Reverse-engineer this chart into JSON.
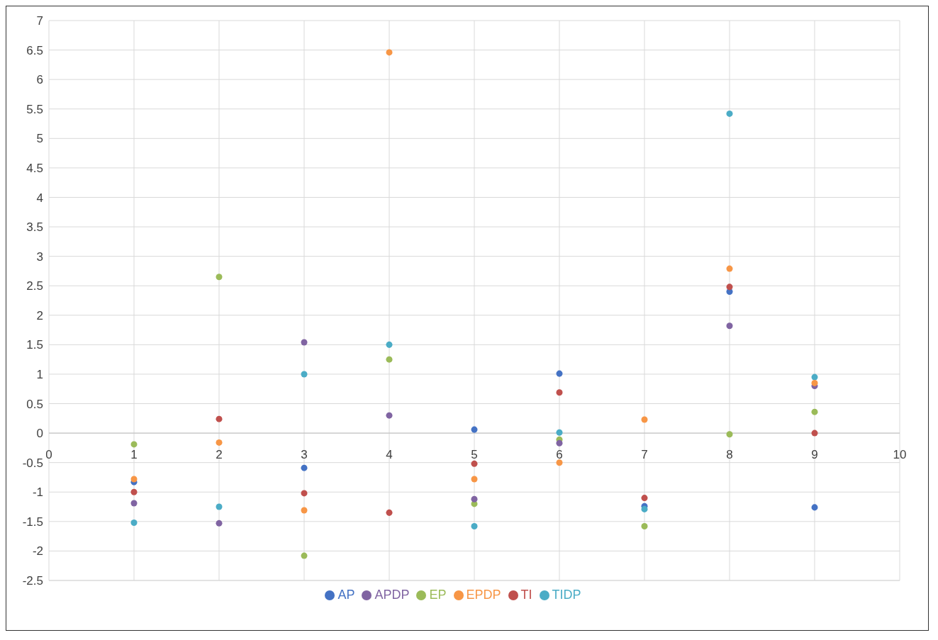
{
  "chart_data": {
    "type": "scatter",
    "xlim": [
      0,
      10
    ],
    "xticks": [
      0,
      1,
      2,
      3,
      4,
      5,
      6,
      7,
      8,
      9,
      10
    ],
    "ylim": [
      -2.5,
      7
    ],
    "yticks": [
      -2.5,
      -2,
      -1.5,
      -1,
      -0.5,
      0,
      0.5,
      1,
      1.5,
      2,
      2.5,
      3,
      3.5,
      4,
      4.5,
      5,
      5.5,
      6,
      6.5,
      7
    ],
    "x": [
      1,
      2,
      3,
      4,
      5,
      6,
      7,
      8,
      9
    ],
    "grid": true,
    "legend": "bottom",
    "marker": "circle",
    "series": [
      {
        "name": "AP",
        "color": "#4472c4",
        "values": [
          -0.83,
          null,
          -0.59,
          null,
          0.06,
          1.01,
          -1.24,
          2.4,
          -1.26
        ]
      },
      {
        "name": "TI",
        "color": "#c0504d",
        "values": [
          -1.0,
          0.24,
          -1.02,
          -1.35,
          -0.52,
          0.69,
          -1.1,
          2.48,
          0.0
        ]
      },
      {
        "name": "EP",
        "color": "#9bbb59",
        "values": [
          -0.19,
          2.65,
          -2.08,
          1.25,
          -1.2,
          -0.11,
          -1.58,
          -0.02,
          0.36
        ]
      },
      {
        "name": "APDP",
        "color": "#8064a2",
        "values": [
          -1.19,
          -1.53,
          1.54,
          0.3,
          -1.12,
          -0.17,
          null,
          1.82,
          0.8
        ]
      },
      {
        "name": "TIDP",
        "color": "#4bacc6",
        "values": [
          -1.52,
          -1.25,
          1.0,
          1.5,
          -1.58,
          0.01,
          -1.29,
          5.42,
          0.95
        ]
      },
      {
        "name": "EPDP",
        "color": "#f79646",
        "values": [
          -0.78,
          -0.16,
          -1.31,
          6.46,
          -0.78,
          -0.5,
          0.23,
          2.79,
          0.85
        ]
      }
    ]
  }
}
